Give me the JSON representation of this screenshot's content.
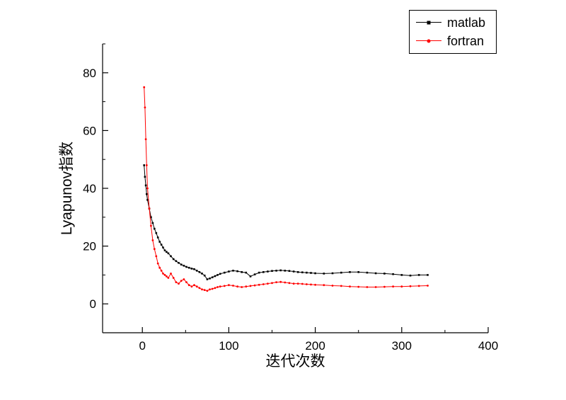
{
  "chart_data": {
    "type": "line",
    "title": "",
    "xlabel": "迭代次数",
    "ylabel": "Lyapunov指数",
    "xlim": [
      -46,
      400
    ],
    "ylim": [
      -10,
      90
    ],
    "grid": false,
    "legend_position": "top-right",
    "xticks": {
      "major": [
        0,
        100,
        200,
        300,
        400
      ],
      "minor": [
        50,
        150,
        250,
        350
      ]
    },
    "yticks": {
      "major": [
        0,
        20,
        40,
        60,
        80
      ],
      "minor": [
        10,
        30,
        50,
        70,
        90
      ]
    },
    "x": [
      2,
      3,
      4,
      5,
      6,
      8,
      10,
      12,
      14,
      16,
      18,
      20,
      22,
      24,
      26,
      28,
      30,
      33,
      36,
      39,
      42,
      45,
      48,
      51,
      54,
      57,
      60,
      63,
      66,
      69,
      72,
      75,
      78,
      81,
      84,
      87,
      90,
      95,
      100,
      105,
      110,
      115,
      120,
      125,
      130,
      135,
      140,
      145,
      150,
      155,
      160,
      165,
      170,
      175,
      180,
      185,
      190,
      195,
      200,
      210,
      220,
      230,
      240,
      250,
      260,
      270,
      280,
      290,
      300,
      310,
      320,
      330
    ],
    "series": [
      {
        "name": "matlab",
        "color": "#000000",
        "marker": "square",
        "values": [
          48,
          44,
          41,
          38,
          36,
          33,
          30,
          28,
          26,
          24.5,
          23,
          21.5,
          20.5,
          19.5,
          18.5,
          18,
          17.5,
          16.5,
          15.5,
          14.8,
          14.2,
          13.6,
          13.2,
          12.8,
          12.5,
          12.2,
          12,
          11.5,
          11,
          10.5,
          9.8,
          8.5,
          8.8,
          9.2,
          9.6,
          10,
          10.4,
          10.8,
          11.2,
          11.5,
          11.3,
          11,
          10.8,
          9.5,
          10.2,
          10.8,
          11,
          11.2,
          11.4,
          11.5,
          11.6,
          11.5,
          11.4,
          11.2,
          11,
          10.9,
          10.8,
          10.7,
          10.6,
          10.5,
          10.6,
          10.8,
          11,
          11,
          10.8,
          10.6,
          10.5,
          10.3,
          10,
          9.8,
          10,
          10
        ]
      },
      {
        "name": "fortran",
        "color": "#ff0000",
        "marker": "circle",
        "values": [
          75,
          68,
          57,
          48,
          40,
          33,
          27,
          22,
          19,
          16.5,
          14,
          12.5,
          11.5,
          10.5,
          10,
          9.5,
          9,
          10.5,
          9,
          7.5,
          7,
          8,
          8.5,
          7.5,
          6.5,
          6,
          6.5,
          6,
          5.5,
          5,
          4.8,
          4.5,
          5,
          5.2,
          5.5,
          5.8,
          6,
          6.2,
          6.5,
          6.3,
          6,
          5.8,
          6,
          6.2,
          6.4,
          6.6,
          6.8,
          7,
          7.2,
          7.5,
          7.6,
          7.4,
          7.2,
          7,
          7,
          6.9,
          6.8,
          6.7,
          6.6,
          6.5,
          6.3,
          6.2,
          6,
          5.9,
          5.8,
          5.8,
          5.9,
          6,
          6,
          6.1,
          6.2,
          6.3
        ]
      }
    ]
  }
}
